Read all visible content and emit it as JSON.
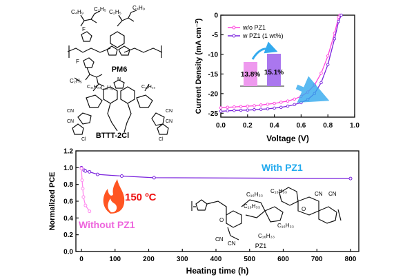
{
  "molecules": {
    "pm6_label": "PM6",
    "btt_label": "BTTT-2Cl",
    "pz1_label": "PZ1",
    "substituents": {
      "c4h9": "C₄H₉",
      "c2h5": "C₂H₅",
      "c11h23": "C₁₁H₂₃",
      "c16h33": "C₁₆H₃₃",
      "cn": "CN",
      "f": "F",
      "cl": "Cl",
      "s": "S",
      "n": "N",
      "o": "O"
    }
  },
  "chart_data": [
    {
      "type": "line",
      "xlabel": "Voltage (V)",
      "ylabel": "Current Density (mA cm⁻²)",
      "xlim": [
        0.0,
        1.0
      ],
      "ylim": [
        -26,
        0
      ],
      "xticks": [
        "0.0",
        "0.2",
        "0.4",
        "0.6",
        "0.8",
        "1.0"
      ],
      "yticks": [
        "0",
        "-5",
        "-10",
        "-15",
        "-20",
        "-25"
      ],
      "legend": "top-left",
      "colors": {
        "wo": "#ff44dd",
        "w": "#7a22dd",
        "arrow": "#33aaee"
      },
      "series": [
        {
          "name": "w/o PZ1",
          "x": [
            0.0,
            0.05,
            0.1,
            0.15,
            0.2,
            0.25,
            0.3,
            0.35,
            0.4,
            0.45,
            0.5,
            0.55,
            0.6,
            0.65,
            0.7,
            0.75,
            0.8,
            0.85,
            0.88,
            0.89
          ],
          "y": [
            -23.6,
            -23.5,
            -23.4,
            -23.3,
            -23.2,
            -23.1,
            -22.9,
            -22.7,
            -22.5,
            -22.2,
            -21.9,
            -21.4,
            -20.7,
            -19.6,
            -17.8,
            -14.8,
            -10.4,
            -4.6,
            -0.5,
            0.0
          ]
        },
        {
          "name": "w PZ1 (1 wt%)",
          "x": [
            0.0,
            0.05,
            0.1,
            0.15,
            0.2,
            0.25,
            0.3,
            0.35,
            0.4,
            0.45,
            0.5,
            0.55,
            0.6,
            0.65,
            0.7,
            0.75,
            0.8,
            0.85,
            0.88,
            0.9
          ],
          "y": [
            -24.5,
            -24.4,
            -24.3,
            -24.25,
            -24.2,
            -24.1,
            -24.0,
            -23.9,
            -23.7,
            -23.5,
            -23.2,
            -22.8,
            -22.3,
            -21.5,
            -20.0,
            -17.2,
            -12.6,
            -6.0,
            -1.6,
            0.0
          ]
        }
      ],
      "inset": {
        "type": "bar",
        "categories": [
          "w/o PZ1",
          "w PZ1 (1 wt%)"
        ],
        "values": [
          13.8,
          15.1
        ],
        "labels": [
          "13.8%",
          "15.1%"
        ],
        "colors": [
          "#ee99ee",
          "#aa77ee"
        ]
      }
    },
    {
      "type": "line",
      "xlabel": "Heating time (h)",
      "ylabel": "Normalized PCE",
      "xlim": [
        0,
        800
      ],
      "ylim": [
        0.0,
        1.2
      ],
      "xticks": [
        "0",
        "100",
        "200",
        "300",
        "400",
        "500",
        "600",
        "700",
        "800"
      ],
      "yticks": [
        "0.0",
        "0.2",
        "0.4",
        "0.6",
        "0.8",
        "1.0",
        "1.2"
      ],
      "annotations": [
        "150 ºC",
        "With PZ1",
        "Without PZ1"
      ],
      "colors": {
        "with": "#7a22dd",
        "without": "#ff88ee",
        "with_label": "#22aaee",
        "without_label": "#ee66dd",
        "temp": "#ee1111",
        "flame": "#ff5522"
      },
      "series": [
        {
          "name": "With PZ1",
          "x": [
            0,
            8,
            12,
            24,
            48,
            120,
            216,
            800
          ],
          "y": [
            1.0,
            0.97,
            0.96,
            0.95,
            0.92,
            0.9,
            0.88,
            0.87
          ]
        },
        {
          "name": "Without PZ1",
          "x": [
            0,
            2,
            4,
            6,
            12,
            24
          ],
          "y": [
            0.99,
            0.85,
            0.75,
            0.65,
            0.55,
            0.48
          ]
        }
      ]
    }
  ]
}
